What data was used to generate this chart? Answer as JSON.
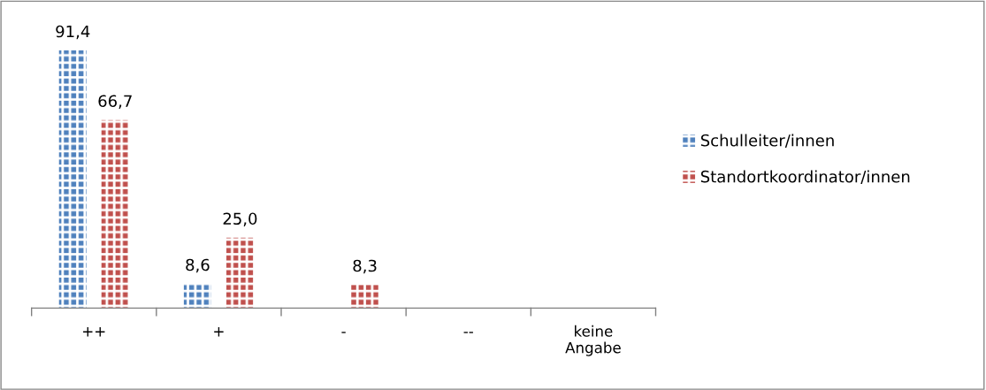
{
  "chart_data": {
    "type": "bar",
    "categories": [
      "++",
      "+",
      "-",
      "--",
      "keine Angabe"
    ],
    "series": [
      {
        "name": "Schulleiter/innen",
        "color": "#4f81bd",
        "values": [
          91.4,
          8.6,
          null,
          null,
          null
        ],
        "value_labels": [
          "91,4",
          "8,6",
          null,
          null,
          null
        ]
      },
      {
        "name": "Standortkoordinator/innen",
        "color": "#c0504d",
        "values": [
          66.7,
          25.0,
          8.3,
          null,
          null
        ],
        "value_labels": [
          "66,7",
          "25,0",
          "8,3",
          null,
          null
        ]
      }
    ],
    "legend": "right",
    "grid": false
  }
}
